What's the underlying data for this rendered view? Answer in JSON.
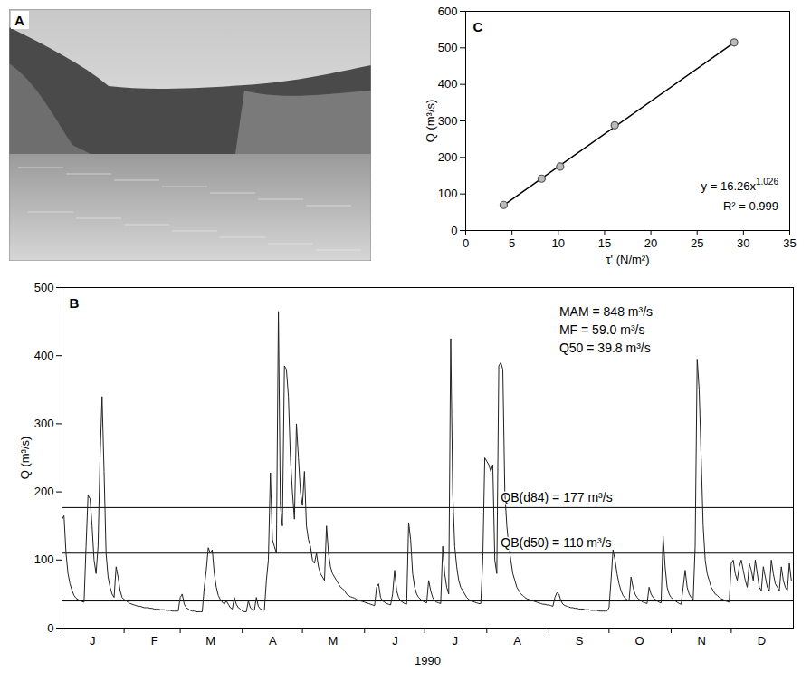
{
  "chart_data": [
    {
      "type": "image",
      "title": "A"
    },
    {
      "type": "line",
      "title": "B",
      "xlabel": "1990",
      "ylabel": "Q (m³/s)",
      "color": "#222222",
      "xlim": [
        "1990-01",
        "1990-12"
      ],
      "xticks": [
        {
          "value": "1990-01",
          "label": "J"
        },
        {
          "value": "1990-02",
          "label": "F"
        },
        {
          "value": "1990-03",
          "label": "M"
        },
        {
          "value": "1990-04",
          "label": "A"
        },
        {
          "value": "1990-05",
          "label": "M"
        },
        {
          "value": "1990-06",
          "label": "J"
        },
        {
          "value": "1990-07",
          "label": "J"
        },
        {
          "value": "1990-08",
          "label": "A"
        },
        {
          "value": "1990-09",
          "label": "S"
        },
        {
          "value": "1990-10",
          "label": "O"
        },
        {
          "value": "1990-11",
          "label": "N"
        },
        {
          "value": "1990-12",
          "label": "D"
        }
      ],
      "ylim": [
        0,
        500
      ],
      "yticks": [
        0,
        100,
        200,
        300,
        400,
        500
      ],
      "grid": false,
      "values": [
        160,
        165,
        110,
        80,
        65,
        55,
        48,
        44,
        42,
        40,
        39,
        38,
        120,
        195,
        190,
        150,
        100,
        80,
        120,
        250,
        340,
        230,
        110,
        75,
        60,
        50,
        45,
        90,
        75,
        55,
        45,
        42,
        40,
        38,
        36,
        35,
        34,
        33,
        32,
        32,
        31,
        30,
        30,
        30,
        29,
        29,
        28,
        28,
        28,
        27,
        27,
        27,
        26,
        26,
        26,
        25,
        25,
        25,
        25,
        45,
        50,
        35,
        30,
        28,
        26,
        25,
        25,
        24,
        24,
        24,
        24,
        60,
        85,
        118,
        110,
        115,
        80,
        60,
        48,
        42,
        38,
        35,
        40,
        35,
        30,
        28,
        45,
        35,
        30,
        28,
        25,
        24,
        24,
        40,
        30,
        27,
        26,
        45,
        32,
        28,
        27,
        26,
        70,
        100,
        228,
        130,
        120,
        110,
        465,
        180,
        150,
        385,
        380,
        340,
        250,
        200,
        160,
        300,
        250,
        200,
        180,
        230,
        150,
        130,
        120,
        100,
        95,
        110,
        90,
        80,
        75,
        70,
        150,
        110,
        90,
        80,
        75,
        70,
        65,
        60,
        58,
        55,
        50,
        48,
        46,
        45,
        44,
        42,
        40,
        40,
        39,
        38,
        37,
        36,
        35,
        34,
        33,
        60,
        65,
        45,
        40,
        38,
        36,
        35,
        34,
        50,
        85,
        55,
        45,
        40,
        38,
        36,
        35,
        155,
        130,
        80,
        60,
        50,
        45,
        42,
        40,
        38,
        37,
        70,
        55,
        45,
        40,
        38,
        37,
        36,
        120,
        80,
        60,
        50,
        425,
        200,
        120,
        90,
        70,
        60,
        55,
        50,
        45,
        42,
        40,
        39,
        38,
        37,
        36,
        36,
        100,
        250,
        245,
        240,
        230,
        240,
        100,
        80,
        385,
        390,
        380,
        200,
        150,
        120,
        100,
        80,
        70,
        60,
        55,
        50,
        48,
        45,
        43,
        42,
        41,
        40,
        39,
        38,
        37,
        36,
        35,
        35,
        34,
        34,
        33,
        32,
        45,
        52,
        50,
        40,
        35,
        33,
        32,
        31,
        30,
        30,
        29,
        29,
        28,
        28,
        28,
        27,
        27,
        27,
        26,
        26,
        26,
        26,
        25,
        25,
        25,
        25,
        25,
        30,
        70,
        115,
        100,
        80,
        65,
        55,
        48,
        44,
        42,
        40,
        75,
        60,
        50,
        45,
        42,
        40,
        38,
        37,
        36,
        60,
        50,
        45,
        42,
        40,
        38,
        37,
        135,
        90,
        60,
        50,
        45,
        42,
        40,
        38,
        36,
        35,
        60,
        85,
        60,
        50,
        45,
        42,
        120,
        395,
        350,
        250,
        150,
        100,
        80,
        70,
        60,
        55,
        50,
        48,
        45,
        43,
        42,
        40,
        39,
        38,
        95,
        100,
        80,
        70,
        90,
        100,
        85,
        70,
        60,
        95,
        85,
        70,
        100,
        80,
        60,
        55,
        90,
        75,
        60,
        55,
        100,
        80,
        65,
        60,
        55,
        90,
        70,
        60,
        55,
        95,
        70
      ],
      "reference_lines": [
        {
          "value": 177,
          "label": "QB(d84) = 177 m³/s"
        },
        {
          "value": 110,
          "label": "QB(d50) = 110 m³/s"
        },
        {
          "value": 39.8
        }
      ],
      "annotations": [
        "MAM = 848 m³/s",
        "MF = 59.0 m³/s",
        "Q50 = 39.8 m³/s"
      ]
    },
    {
      "type": "scatter",
      "title": "C",
      "xlabel": "τ' (N/m²)",
      "ylabel": "Q (m³/s)",
      "xlim": [
        0,
        35
      ],
      "xticks": [
        0,
        5,
        10,
        15,
        20,
        25,
        30,
        35
      ],
      "ylim": [
        0,
        600
      ],
      "yticks": [
        0,
        100,
        200,
        300,
        400,
        500,
        600
      ],
      "grid": false,
      "series": [
        {
          "type": "scatter",
          "marker": "circle",
          "color": "#555555",
          "x": [
            4.1,
            8.2,
            10.2,
            16.1,
            29.0
          ],
          "y": [
            70,
            142,
            175,
            288,
            515
          ]
        },
        {
          "type": "line",
          "line_style": "solid",
          "color": "#000000",
          "x": [
            4.1,
            29.0
          ],
          "y": [
            69.1,
            514.7
          ]
        }
      ],
      "annotations": [
        {
          "text": "y = 16.26x",
          "superscript": "1.026"
        },
        {
          "text": "R² = 0.999"
        }
      ]
    }
  ]
}
